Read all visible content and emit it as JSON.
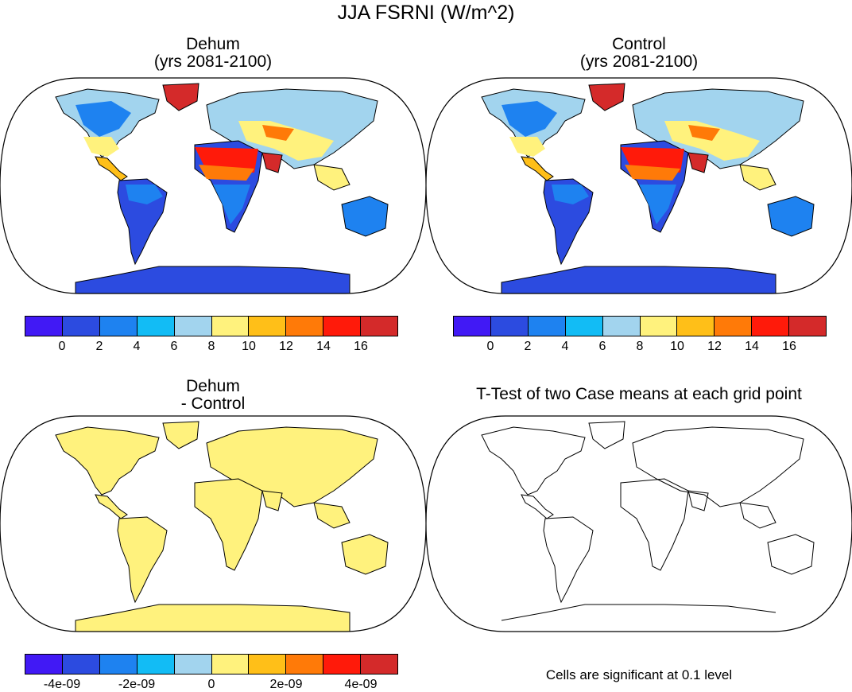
{
  "figure": {
    "title": "JJA FSRNI (W/m^2)",
    "panels": [
      {
        "id": "dehum",
        "title_line1": "Dehum",
        "title_line2": "(yrs 2081-2100)"
      },
      {
        "id": "control",
        "title_line1": "Control",
        "title_line2": "(yrs 2081-2100)"
      },
      {
        "id": "diff",
        "title_line1": "Dehum",
        "title_line2": "- Control"
      },
      {
        "id": "ttest",
        "title_line1": "T-Test of two Case means at each grid point"
      }
    ],
    "note": "Cells are significant at 0.1 level"
  },
  "colors": {
    "palette": [
      "#4119f5",
      "#2c4be0",
      "#1e82f0",
      "#12bcf5",
      "#a2d4ee",
      "#fff27d",
      "#ffbf18",
      "#ff7a08",
      "#ff1a0a",
      "#d42a2a"
    ],
    "ocean": "#ffffff",
    "coast": "#000000",
    "diff_land": "#fff27d"
  },
  "colorbars": {
    "absolute": {
      "labels": [
        "0",
        "2",
        "4",
        "6",
        "8",
        "10",
        "12",
        "14",
        "16"
      ]
    },
    "difference": {
      "labels": [
        "-4e-09",
        "-2e-09",
        "0",
        "2e-09",
        "4e-09"
      ]
    }
  },
  "icons": {
    "projection": "robinson-globe-icon"
  }
}
